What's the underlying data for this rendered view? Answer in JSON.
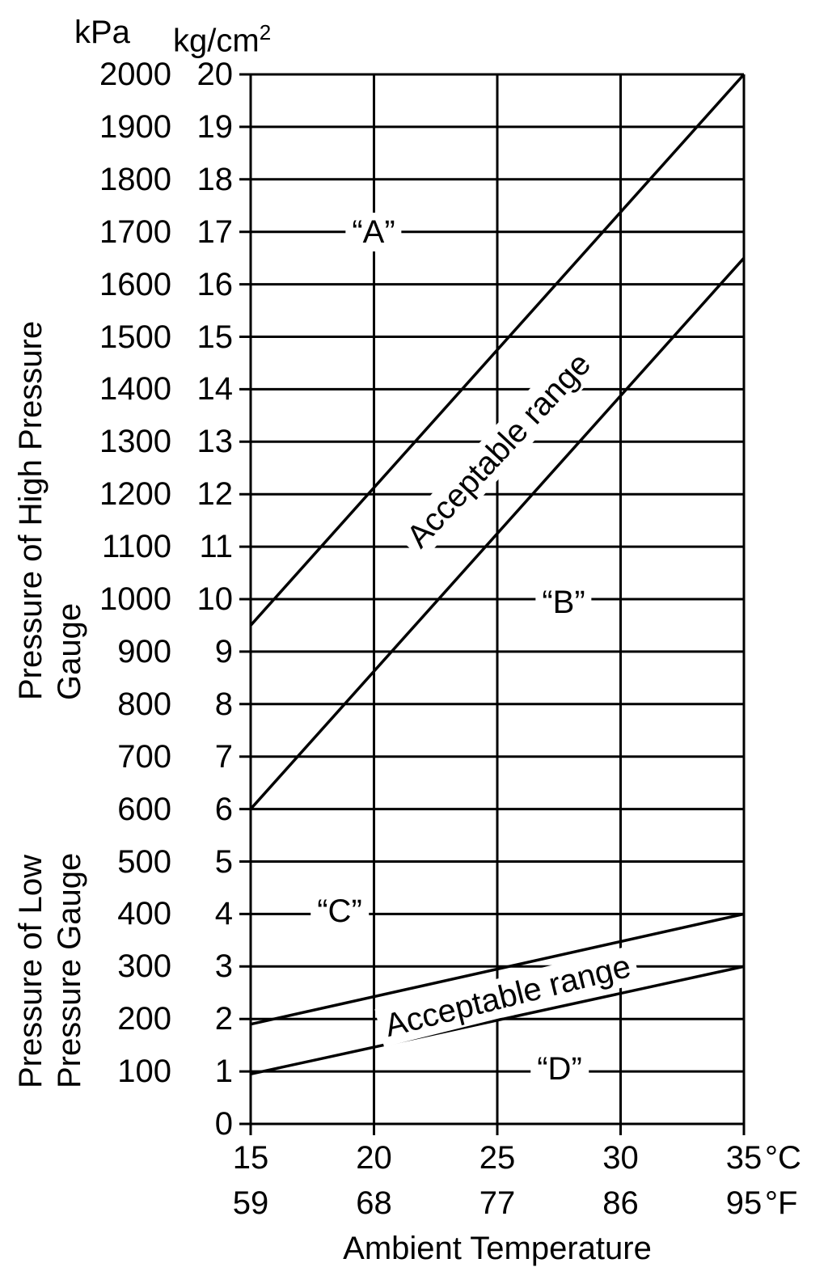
{
  "chart_data": {
    "type": "line",
    "title": "",
    "xlabel": "Ambient Temperature",
    "xlim": [
      15,
      35
    ],
    "ylim": [
      0,
      2000
    ],
    "grid": true,
    "line_color": "#000000",
    "background": "#ffffff",
    "y_axis_left_unit": "kPa",
    "y_axis_right_unit_base": "kg/cm",
    "y_axis_right_unit_sup": "2",
    "x_unit_c": "°C",
    "x_unit_f": "°F",
    "x_ticks": [
      {
        "c": "15",
        "f": "59"
      },
      {
        "c": "20",
        "f": "68"
      },
      {
        "c": "25",
        "f": "77"
      },
      {
        "c": "30",
        "f": "86"
      },
      {
        "c": "35",
        "f": "95"
      }
    ],
    "y_ticks_kpa": [
      "2000",
      "1900",
      "1800",
      "1700",
      "1600",
      "1500",
      "1400",
      "1300",
      "1200",
      "1100",
      "1000",
      "900",
      "800",
      "700",
      "600",
      "500",
      "400",
      "300",
      "200",
      "100"
    ],
    "y_ticks_kgcm2": [
      "20",
      "19",
      "18",
      "17",
      "16",
      "15",
      "14",
      "13",
      "12",
      "11",
      "10",
      "9",
      "8",
      "7",
      "6",
      "5",
      "4",
      "3",
      "2",
      "1",
      "0"
    ],
    "series": [
      {
        "name": "A",
        "x": [
          15,
          35
        ],
        "values": [
          950,
          2000
        ]
      },
      {
        "name": "B",
        "x": [
          15,
          35
        ],
        "values": [
          600,
          1650
        ]
      },
      {
        "name": "C",
        "x": [
          15,
          35
        ],
        "values": [
          190,
          400
        ]
      },
      {
        "name": "D",
        "x": [
          15,
          35
        ],
        "values": [
          95,
          300
        ]
      }
    ],
    "annotations": {
      "a": "“A”",
      "b": "“B”",
      "c": "“C”",
      "d": "“D”",
      "range_high": "Acceptable range",
      "range_low": "Acceptable range"
    },
    "y_group_labels": {
      "high_line1": "Pressure of High Pressure",
      "high_line2": "Gauge",
      "low_line1": "Pressure of Low",
      "low_line2": "Pressure Gauge"
    }
  }
}
